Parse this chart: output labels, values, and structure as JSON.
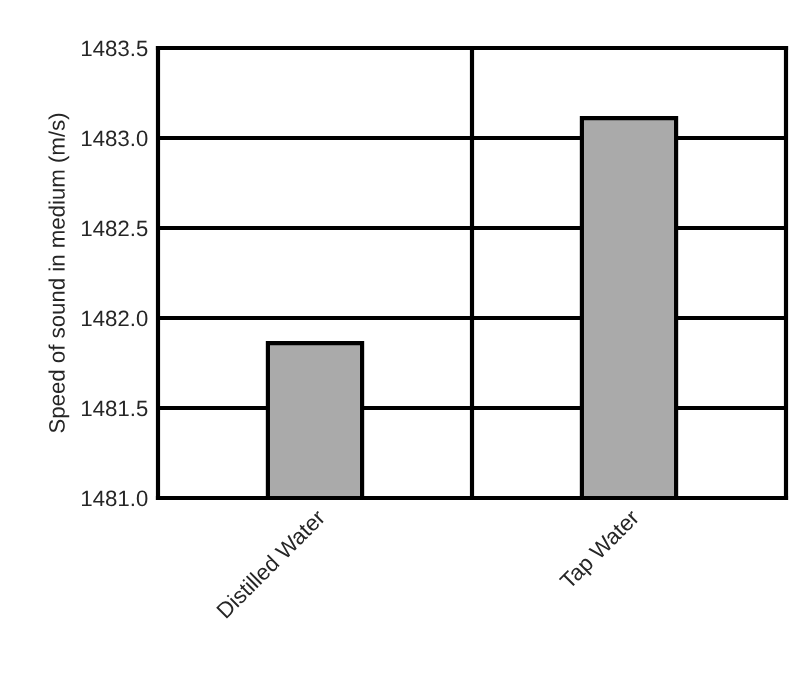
{
  "chart_data": {
    "type": "bar",
    "ylabel": "Speed of sound in medium (m/s)",
    "categories": [
      "Distilled Water",
      "Tap Water"
    ],
    "values": [
      1481.86,
      1483.11
    ],
    "color": "#aaaaaa",
    "ylim": [
      1481.0,
      1483.5
    ],
    "yticks": [
      {
        "value": 1481.0,
        "label": "1481.0"
      },
      {
        "value": 1481.5,
        "label": "1481.5"
      },
      {
        "value": 1482.0,
        "label": "1482.0"
      },
      {
        "value": 1482.5,
        "label": "1482.5"
      },
      {
        "value": 1483.0,
        "label": "1483.0"
      },
      {
        "value": 1483.5,
        "label": "1483.5"
      }
    ],
    "grid": true
  }
}
